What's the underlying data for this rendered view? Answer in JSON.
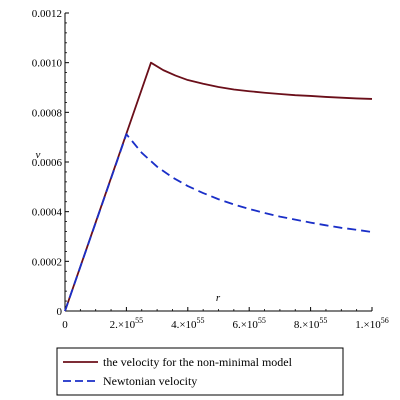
{
  "chart_data": {
    "type": "line",
    "xlabel": "r",
    "ylabel": "v",
    "xlim": [
      0,
      1e+56
    ],
    "ylim": [
      0,
      0.0012
    ],
    "grid": false,
    "legend_position": "bottom",
    "x_ticks": [
      {
        "value": 0,
        "mantissa": "0",
        "exp": ""
      },
      {
        "value": 2e+55,
        "mantissa": "2.×10",
        "exp": "55"
      },
      {
        "value": 4e+55,
        "mantissa": "4.×10",
        "exp": "55"
      },
      {
        "value": 6e+55,
        "mantissa": "6.×10",
        "exp": "55"
      },
      {
        "value": 8e+55,
        "mantissa": "8.×10",
        "exp": "55"
      },
      {
        "value": 1e+56,
        "mantissa": "1.×10",
        "exp": "56"
      }
    ],
    "y_ticks": [
      {
        "value": 0,
        "label": "0"
      },
      {
        "value": 0.0002,
        "label": "0.0002"
      },
      {
        "value": 0.0004,
        "label": "0.0004"
      },
      {
        "value": 0.0006,
        "label": "0.0006"
      },
      {
        "value": 0.0008,
        "label": "0.0008"
      },
      {
        "value": 0.001,
        "label": "0.0010"
      },
      {
        "value": 0.0012,
        "label": "0.0012"
      }
    ],
    "series": [
      {
        "name": "the velocity for the non-minimal model",
        "color": "#6b0f1a",
        "dash": "solid",
        "points": [
          [
            0,
            0
          ],
          [
            2.8e+55,
            0.001
          ],
          [
            3.2e+55,
            0.00097
          ],
          [
            3.6e+55,
            0.000948
          ],
          [
            4e+55,
            0.00093
          ],
          [
            4.5e+55,
            0.000915
          ],
          [
            5e+55,
            0.000902
          ],
          [
            5.5e+55,
            0.000892
          ],
          [
            6e+55,
            0.000885
          ],
          [
            6.5e+55,
            0.000879
          ],
          [
            7e+55,
            0.000874
          ],
          [
            7.5e+55,
            0.000869
          ],
          [
            8e+55,
            0.000866
          ],
          [
            8.5e+55,
            0.000862
          ],
          [
            9e+55,
            0.000859
          ],
          [
            9.5e+55,
            0.000856
          ],
          [
            1e+56,
            0.000854
          ]
        ]
      },
      {
        "name": "Newtonian velocity",
        "color": "#1a2fc8",
        "dash": "dashed",
        "points": [
          [
            0,
            0
          ],
          [
            2e+55,
            0.000712
          ],
          [
            2.5e+55,
            0.000637
          ],
          [
            3e+55,
            0.000581
          ],
          [
            3.5e+55,
            0.000538
          ],
          [
            4e+55,
            0.000503
          ],
          [
            4.5e+55,
            0.000475
          ],
          [
            5e+55,
            0.00045
          ],
          [
            5.5e+55,
            0.000429
          ],
          [
            6e+55,
            0.000411
          ],
          [
            6.5e+55,
            0.000395
          ],
          [
            7e+55,
            0.00038
          ],
          [
            7.5e+55,
            0.000368
          ],
          [
            8e+55,
            0.000356
          ],
          [
            8.5e+55,
            0.000345
          ],
          [
            9e+55,
            0.000335
          ],
          [
            9.5e+55,
            0.000327
          ],
          [
            1e+56,
            0.000318
          ]
        ]
      }
    ]
  }
}
